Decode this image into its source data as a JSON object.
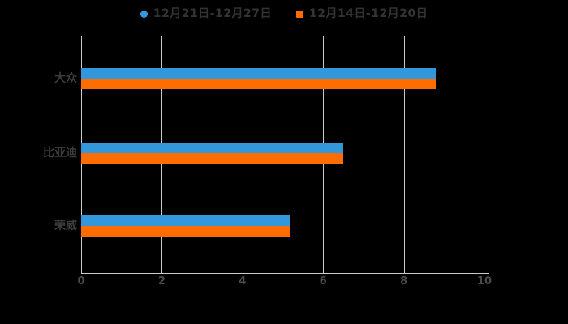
{
  "background_color": "#000000",
  "legend": {
    "items": [
      {
        "label": "12月21日-12月27日",
        "color": "#3398db",
        "shape": "circle"
      },
      {
        "label": "12月14日-12月20日",
        "color": "#ff6c00",
        "shape": "square"
      }
    ]
  },
  "chart_data": {
    "type": "bar",
    "orientation": "horizontal",
    "title": "",
    "xlabel": "",
    "ylabel": "",
    "categories": [
      "大众",
      "比亚迪",
      "荣威"
    ],
    "series": [
      {
        "name": "12月21日-12月27日",
        "color": "#3398db",
        "values": [
          8.8,
          6.5,
          5.2
        ]
      },
      {
        "name": "12月14日-12月20日",
        "color": "#ff6c00",
        "values": [
          8.8,
          6.5,
          5.2
        ]
      }
    ],
    "xlim": [
      0,
      10
    ],
    "x_ticks": [
      0,
      2,
      4,
      6,
      8,
      10
    ],
    "grid": true,
    "gridline_color": "#cccccc",
    "legend_position": "top",
    "text_color": "#3d3d3d"
  }
}
